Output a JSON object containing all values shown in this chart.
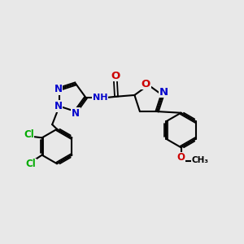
{
  "background_color": "#e8e8e8",
  "bond_color": "#000000",
  "bond_width": 1.5,
  "atom_colors": {
    "N": "#0000cc",
    "O": "#cc0000",
    "Cl": "#00aa00",
    "C": "#000000",
    "H": "#555555"
  },
  "font_size": 8.5,
  "figsize": [
    3.0,
    3.0
  ],
  "dpi": 100,
  "xlim": [
    0,
    12
  ],
  "ylim": [
    0,
    12
  ]
}
